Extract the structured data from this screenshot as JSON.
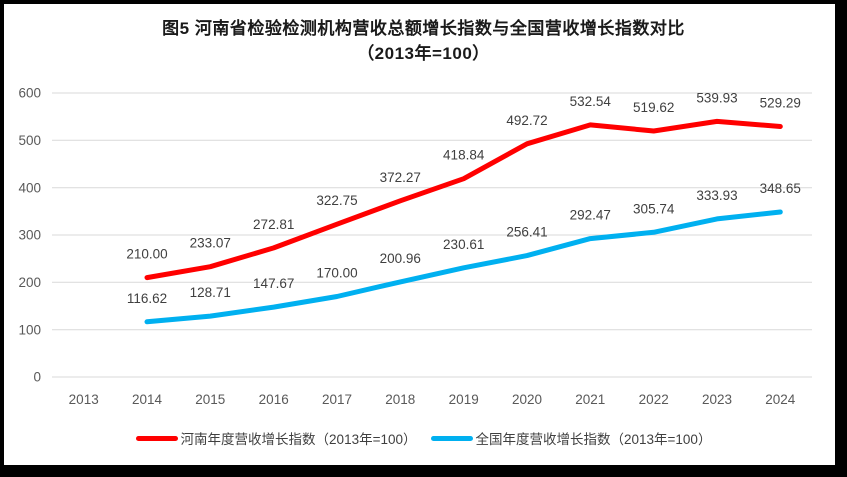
{
  "chart_data": {
    "type": "line",
    "title": "图5  河南省检验检测机构营收总额增长指数与全国营收增长指数对比",
    "subtitle": "（2013年=100）",
    "categories": [
      "2013",
      "2014",
      "2015",
      "2016",
      "2017",
      "2018",
      "2019",
      "2020",
      "2021",
      "2022",
      "2023",
      "2024"
    ],
    "series": [
      {
        "name": "河南年度营收增长指数（2013年=100）",
        "color": "#ff0000",
        "values": [
          null,
          210.0,
          233.07,
          272.81,
          322.75,
          372.27,
          418.84,
          492.72,
          532.54,
          519.62,
          539.93,
          529.29
        ]
      },
      {
        "name": "全国年度营收增长指数（2013年=100）",
        "color": "#00b0f0",
        "values": [
          null,
          116.62,
          128.71,
          147.67,
          170.0,
          200.96,
          230.61,
          256.41,
          292.47,
          305.74,
          333.93,
          348.65
        ]
      }
    ],
    "ylim": [
      0,
      600
    ],
    "ytick_interval": 100,
    "label_decimals": 2,
    "grid": true,
    "legend_position": "bottom",
    "colors": {
      "gridline": "#d9d9d9",
      "axis_tick_text": "#595959",
      "data_label_text": "#3f3f3f",
      "frame_border": "#000000"
    }
  }
}
